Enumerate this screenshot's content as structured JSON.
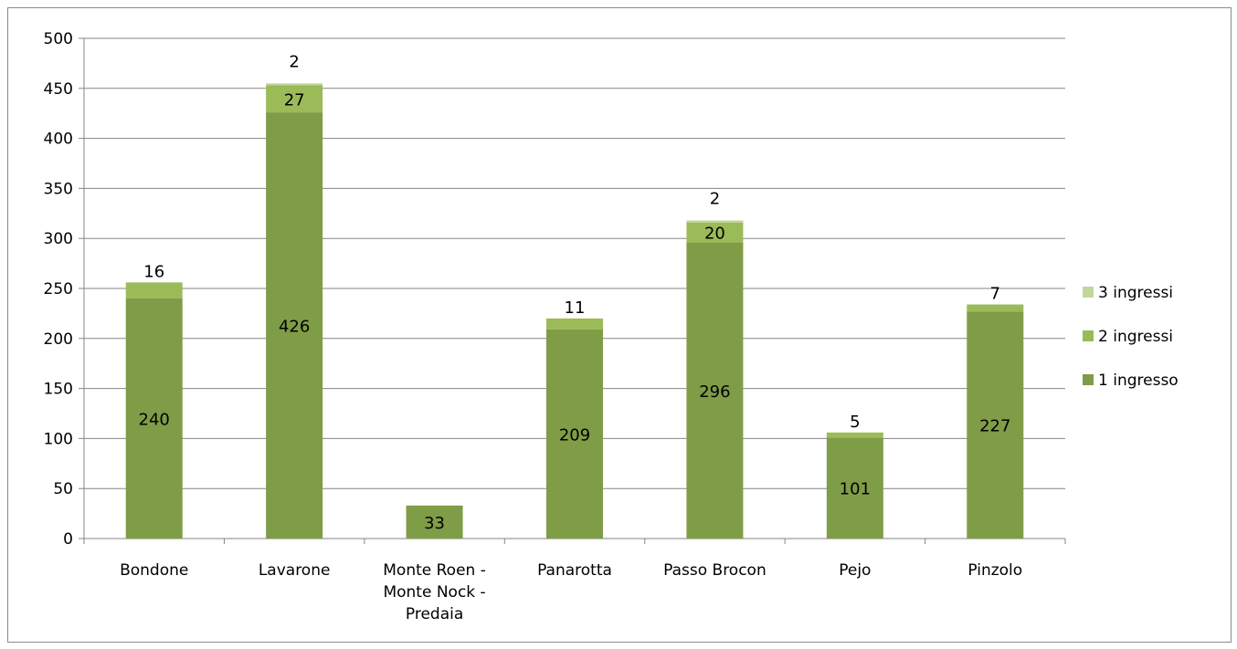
{
  "chart_data": {
    "type": "bar",
    "stacked": true,
    "title": "",
    "xlabel": "",
    "ylabel": "",
    "ylim": [
      0,
      500
    ],
    "ytick_step": 50,
    "yticks": [
      "0",
      "50",
      "100",
      "150",
      "200",
      "250",
      "300",
      "350",
      "400",
      "450",
      "500"
    ],
    "grid": true,
    "legend_position": "right",
    "categories": [
      "Bondone",
      "Lavarone",
      "Monte Roen - Monte Nock - Predaia",
      "Panarotta",
      "Passo Brocon",
      "Pejo",
      "Pinzolo"
    ],
    "category_lines": [
      [
        "Bondone"
      ],
      [
        "Lavarone"
      ],
      [
        "Monte Roen -",
        "Monte Nock -",
        "Predaia"
      ],
      [
        "Panarotta"
      ],
      [
        "Passo Brocon"
      ],
      [
        "Pejo"
      ],
      [
        "Pinzolo"
      ]
    ],
    "series": [
      {
        "name": "1 ingresso",
        "color": "#7f9c47",
        "values": [
          240,
          426,
          33,
          209,
          296,
          101,
          227
        ]
      },
      {
        "name": "2 ingressi",
        "color": "#9bbb59",
        "values": [
          16,
          27,
          0,
          11,
          20,
          5,
          7
        ]
      },
      {
        "name": "3 ingressi",
        "color": "#c3d69b",
        "values": [
          0,
          2,
          0,
          0,
          2,
          0,
          0
        ]
      }
    ],
    "data_labels": [
      [
        "240",
        "426",
        "33",
        "209",
        "296",
        "101",
        "227"
      ],
      [
        "16",
        "27",
        "",
        "11",
        "20",
        "5",
        "7"
      ],
      [
        "",
        "2",
        "",
        "",
        "2",
        "",
        ""
      ]
    ],
    "legend_order": [
      "3 ingressi",
      "2 ingressi",
      "1 ingresso"
    ]
  }
}
